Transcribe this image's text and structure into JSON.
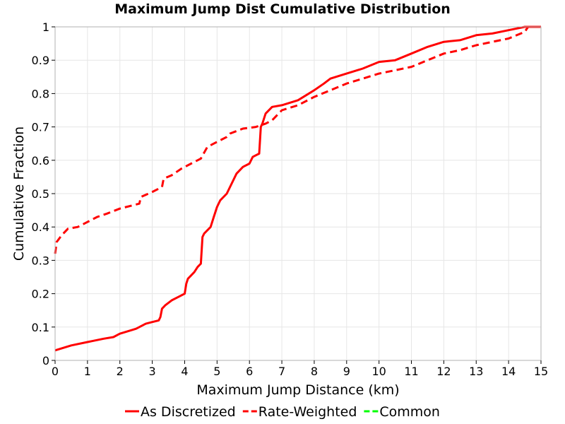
{
  "chart_data": {
    "type": "line",
    "title": "Maximum Jump Dist Cumulative Distribution",
    "xlabel": "Maximum Jump Distance (km)",
    "ylabel": "Cumulative Fraction",
    "xlim": [
      0,
      15
    ],
    "ylim": [
      0,
      1
    ],
    "x_ticks": [
      "0",
      "1",
      "2",
      "3",
      "4",
      "5",
      "6",
      "7",
      "8",
      "9",
      "10",
      "11",
      "12",
      "13",
      "14",
      "15"
    ],
    "y_ticks": [
      "0",
      "0.1",
      "0.2",
      "0.3",
      "0.4",
      "0.5",
      "0.6",
      "0.7",
      "0.8",
      "0.9",
      "1"
    ],
    "grid": true,
    "legend_position": "bottom",
    "series": [
      {
        "name": "As Discretized",
        "color": "#ff0000",
        "style": "solid",
        "x": [
          0,
          0.5,
          1,
          1.5,
          1.8,
          2,
          2.5,
          2.8,
          3,
          3.2,
          3.25,
          3.3,
          3.4,
          3.6,
          3.8,
          4.0,
          4.05,
          4.1,
          4.3,
          4.4,
          4.5,
          4.55,
          4.6,
          4.8,
          4.9,
          5.0,
          5.1,
          5.3,
          5.5,
          5.6,
          5.8,
          6.0,
          6.1,
          6.2,
          6.3,
          6.35,
          6.4,
          6.5,
          6.7,
          7.0,
          7.5,
          8.0,
          8.3,
          8.5,
          9.0,
          9.5,
          10.0,
          10.5,
          11.0,
          11.5,
          12.0,
          12.5,
          13.0,
          13.5,
          14.0,
          14.5,
          15.0
        ],
        "y": [
          0.03,
          0.045,
          0.055,
          0.065,
          0.07,
          0.08,
          0.095,
          0.11,
          0.115,
          0.12,
          0.13,
          0.155,
          0.165,
          0.18,
          0.19,
          0.2,
          0.23,
          0.245,
          0.265,
          0.28,
          0.29,
          0.37,
          0.38,
          0.4,
          0.43,
          0.46,
          0.48,
          0.5,
          0.54,
          0.56,
          0.58,
          0.59,
          0.61,
          0.615,
          0.62,
          0.7,
          0.71,
          0.74,
          0.76,
          0.765,
          0.78,
          0.81,
          0.83,
          0.845,
          0.86,
          0.875,
          0.895,
          0.9,
          0.92,
          0.94,
          0.955,
          0.96,
          0.975,
          0.98,
          0.99,
          1.0,
          1.0
        ]
      },
      {
        "name": "Rate-Weighted",
        "color": "#ff0000",
        "style": "dashed",
        "x": [
          0,
          0.05,
          0.2,
          0.4,
          0.7,
          1.0,
          1.3,
          1.6,
          2.0,
          2.4,
          2.6,
          2.65,
          3.0,
          3.3,
          3.35,
          3.6,
          3.9,
          4.2,
          4.5,
          4.7,
          5.0,
          5.3,
          5.4,
          5.8,
          6.2,
          6.5,
          6.7,
          7.0,
          7.5,
          8.0,
          8.5,
          9.0,
          9.5,
          10.0,
          10.5,
          11.0,
          11.5,
          12.0,
          12.5,
          13.0,
          13.5,
          14.0,
          14.5,
          14.6,
          15.0
        ],
        "y": [
          0.32,
          0.355,
          0.375,
          0.395,
          0.4,
          0.415,
          0.43,
          0.44,
          0.455,
          0.465,
          0.47,
          0.49,
          0.505,
          0.52,
          0.545,
          0.555,
          0.575,
          0.59,
          0.605,
          0.64,
          0.655,
          0.67,
          0.68,
          0.695,
          0.7,
          0.71,
          0.72,
          0.75,
          0.765,
          0.79,
          0.81,
          0.83,
          0.845,
          0.86,
          0.87,
          0.88,
          0.9,
          0.92,
          0.93,
          0.945,
          0.955,
          0.965,
          0.985,
          1.0,
          1.0
        ]
      },
      {
        "name": "Common",
        "color": "#00ff00",
        "style": "dashed",
        "x": [],
        "y": []
      }
    ]
  }
}
